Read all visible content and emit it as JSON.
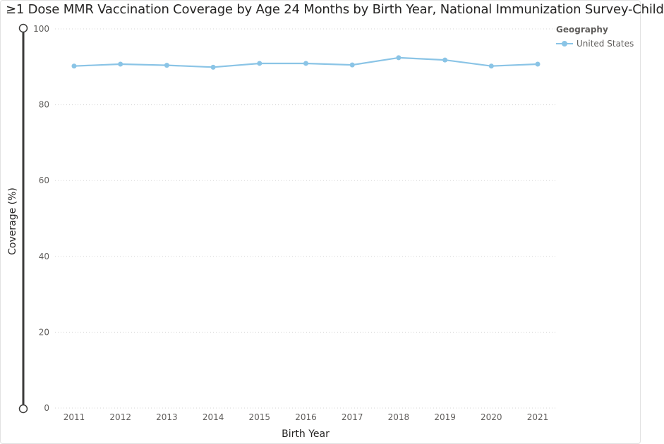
{
  "chart_data": {
    "type": "line",
    "title": "≥1 Dose MMR Vaccination Coverage by Age 24 Months by Birth Year, National Immunization Survey-Child",
    "xlabel": "Birth Year",
    "ylabel": "Coverage (%)",
    "ylim": [
      0,
      100
    ],
    "yticks": [
      0,
      20,
      40,
      60,
      80,
      100
    ],
    "grid": true,
    "legend": {
      "title": "Geography",
      "placement": "top-right"
    },
    "x": [
      "2011",
      "2012",
      "2013",
      "2014",
      "2015",
      "2016",
      "2017",
      "2018",
      "2019",
      "2020",
      "2021"
    ],
    "series": [
      {
        "name": "United States",
        "color": "#8ac4e6",
        "values": [
          90.2,
          90.7,
          90.4,
          89.9,
          90.9,
          90.9,
          90.5,
          92.4,
          91.8,
          90.2,
          90.7
        ]
      }
    ]
  }
}
